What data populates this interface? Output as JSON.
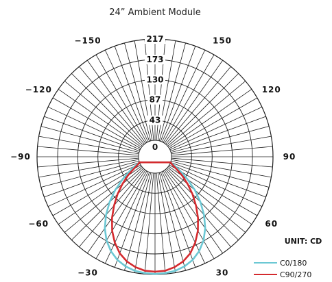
{
  "chart_data": {
    "type": "polar",
    "title": "24” Ambient Module",
    "unit_label": "UNIT: CD",
    "radial_max": 217,
    "radial_ticks": [
      0,
      43,
      87,
      130,
      173,
      217
    ],
    "radial_tick_labels": [
      "0",
      "43",
      "87",
      "130",
      "173",
      "217"
    ],
    "angle_tick_labels": [
      {
        "angle": -150,
        "label": "−150"
      },
      {
        "angle": 150,
        "label": "150"
      },
      {
        "angle": -120,
        "label": "−120"
      },
      {
        "angle": 120,
        "label": "120"
      },
      {
        "angle": -90,
        "label": "−90"
      },
      {
        "angle": 90,
        "label": "90"
      },
      {
        "angle": -60,
        "label": "−60"
      },
      {
        "angle": 60,
        "label": "60"
      },
      {
        "angle": -30,
        "label": "−30"
      },
      {
        "angle": 30,
        "label": "30"
      }
    ],
    "grid": true,
    "legend_position": "bottom-right",
    "series": [
      {
        "name": "C0/180",
        "color": "#6cc8d4",
        "angles": [
          0,
          5,
          10,
          15,
          20,
          25,
          30,
          35,
          40,
          45,
          50,
          55,
          60,
          65,
          70
        ],
        "values": [
          216,
          215,
          213,
          208,
          200,
          188,
          172,
          152,
          128,
          102,
          76,
          50,
          28,
          12,
          0
        ]
      },
      {
        "name": "C90/270",
        "color": "#d42a2e",
        "angles": [
          0,
          5,
          10,
          15,
          20,
          25,
          30,
          35,
          40,
          45,
          50,
          55,
          60,
          65,
          70
        ],
        "values": [
          211,
          210,
          205,
          197,
          185,
          168,
          148,
          125,
          101,
          78,
          56,
          36,
          18,
          6,
          0
        ]
      }
    ]
  }
}
